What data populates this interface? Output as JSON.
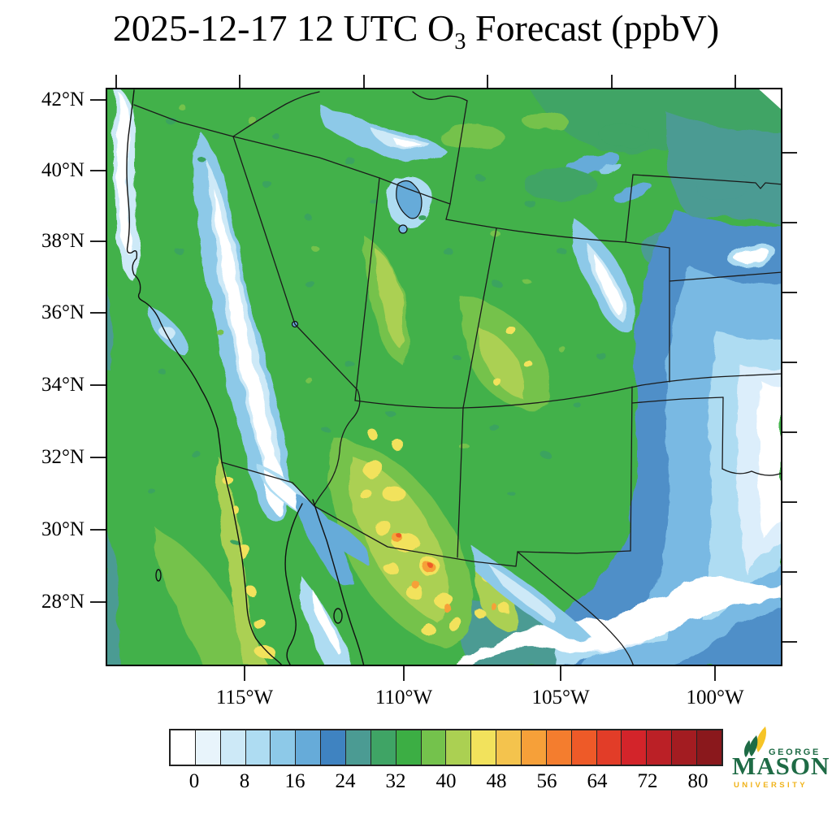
{
  "title": {
    "text_prefix": "2025-12-17 12 UTC O",
    "subscript": "3",
    "text_suffix": " Forecast (ppbV)"
  },
  "axes": {
    "lat_ticks": [
      "42°N",
      "40°N",
      "38°N",
      "36°N",
      "34°N",
      "32°N",
      "30°N",
      "28°N"
    ],
    "lon_ticks": [
      "115°W",
      "110°W",
      "105°W",
      "100°W"
    ]
  },
  "colorbar": {
    "tick_labels": [
      "0",
      "8",
      "16",
      "24",
      "32",
      "40",
      "48",
      "56",
      "64",
      "72",
      "80"
    ],
    "colors": [
      "#ffffff",
      "#e8f4fb",
      "#cde9f7",
      "#aedcf2",
      "#8dc9e8",
      "#66abd9",
      "#3f83c1",
      "#4b9b93",
      "#3fa465",
      "#3cae44",
      "#74c24c",
      "#abd052",
      "#f2e25c",
      "#f4c34d",
      "#f6a039",
      "#f47d2e",
      "#ee5a28",
      "#e23d28",
      "#d3242a",
      "#bb2026",
      "#a31c21",
      "#8a181c"
    ]
  },
  "logo": {
    "line1": "GEORGE",
    "line2": "MASON",
    "line3": "UNIVERSITY",
    "green": "#1e6b45",
    "gold": "#f0b31a"
  },
  "chart_data": {
    "type": "heatmap",
    "title": "2025-12-17 12 UTC O3 Forecast (ppbV)",
    "variable": "O3",
    "units": "ppbV",
    "valid_time": "2025-12-17 12 UTC",
    "x_tick_labels": [
      "115°W",
      "110°W",
      "105°W",
      "100°W"
    ],
    "y_tick_labels": [
      "42°N",
      "40°N",
      "38°N",
      "36°N",
      "34°N",
      "32°N",
      "30°N",
      "28°N"
    ],
    "colorbar_tick_values": [
      0,
      8,
      16,
      24,
      32,
      40,
      48,
      56,
      64,
      72,
      80
    ],
    "colorbar_bin_size": 4,
    "colorbar_colors": [
      "#ffffff",
      "#e8f4fb",
      "#cde9f7",
      "#aedcf2",
      "#8dc9e8",
      "#66abd9",
      "#3f83c1",
      "#4b9b93",
      "#3fa465",
      "#3cae44",
      "#74c24c",
      "#abd052",
      "#f2e25c",
      "#f4c34d",
      "#f6a039",
      "#f47d2e",
      "#ee5a28",
      "#e23d28",
      "#d3242a",
      "#bb2026",
      "#a31c21",
      "#8a181c"
    ],
    "legend_position": "bottom",
    "map_extent_note": "Southwestern United States and northern Mexico, Lambert-type projection",
    "regions_approx": [
      {
        "area": "Pacific Ocean offshore California",
        "value_ppbv": "32-40"
      },
      {
        "area": "Sierra Nevada crest",
        "value_ppbv": "0-8"
      },
      {
        "area": "Nevada Great Basin",
        "value_ppbv": "36-46"
      },
      {
        "area": "Great Salt Lake / Utah valleys",
        "value_ppbv": "12-28"
      },
      {
        "area": "Colorado Front Range snow band",
        "value_ppbv": "0-12"
      },
      {
        "area": "Eastern plains (KS/OK/TX panhandle)",
        "value_ppbv": "4-24"
      },
      {
        "area": "New Mexico / Colorado highlands",
        "value_ppbv": "38-48"
      },
      {
        "area": "Sierra Madre Occidental (Mexico)",
        "value_ppbv": "44-62"
      },
      {
        "area": "Baja California peninsula",
        "value_ppbv": "40-50"
      },
      {
        "area": "Gulf of California",
        "value_ppbv": "8-24"
      }
    ]
  }
}
